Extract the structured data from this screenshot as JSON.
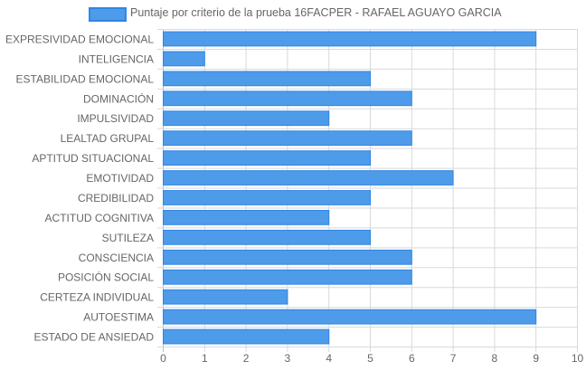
{
  "chart_data": {
    "type": "bar",
    "orientation": "horizontal",
    "categories": [
      "EXPRESIVIDAD EMOCIONAL",
      "INTELIGENCIA",
      "ESTABILIDAD EMOCIONAL",
      "DOMINACIÓN",
      "IMPULSIVIDAD",
      "LEALTAD GRUPAL",
      "APTITUD SITUACIONAL",
      "EMOTIVIDAD",
      "CREDIBILIDAD",
      "ACTITUD COGNITIVA",
      "SUTILEZA",
      "CONSCIENCIA",
      "POSICIÓN SOCIAL",
      "CERTEZA INDIVIDUAL",
      "AUTOESTIMA",
      "ESTADO DE ANSIEDAD"
    ],
    "series": [
      {
        "name": "Puntaje por criterio de la prueba 16FACPER - RAFAEL AGUAYO GARCIA",
        "values": [
          9,
          1,
          5,
          6,
          4,
          6,
          5,
          7,
          5,
          4,
          5,
          6,
          6,
          3,
          9,
          4
        ]
      }
    ],
    "xlim": [
      0,
      10
    ],
    "xticks": [
      "0",
      "1",
      "2",
      "3",
      "4",
      "5",
      "6",
      "7",
      "8",
      "9",
      "10"
    ],
    "grid": true,
    "legend": "top-center",
    "colors": {
      "fill": "#4e9be9",
      "border": "#2f86e6",
      "grid": "#d9d9d9",
      "text": "#666666"
    }
  }
}
